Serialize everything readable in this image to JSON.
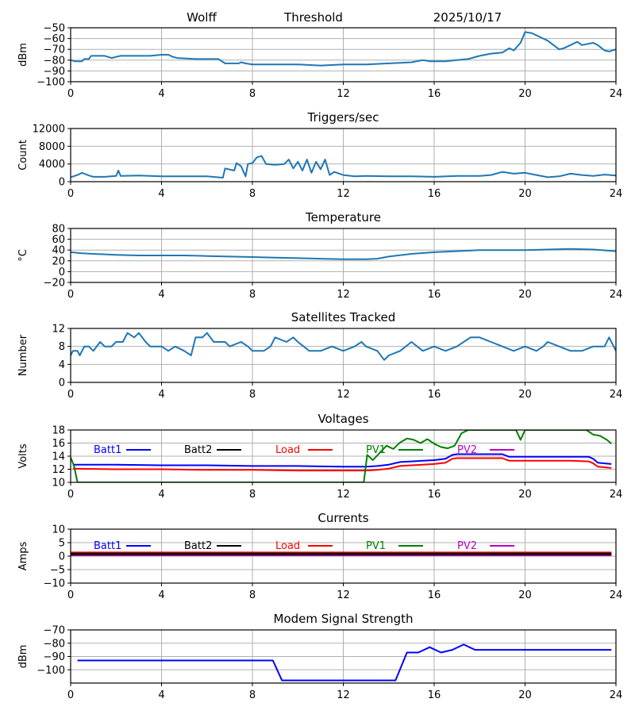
{
  "header": {
    "site": "Wolff",
    "mode": "Threshold",
    "date": "2025/10/17"
  },
  "chart_data": [
    {
      "type": "line",
      "title": "",
      "ylabel": "dBm",
      "ylim": [
        -100,
        -50
      ],
      "yticks": [
        "−50",
        "−60",
        "−70",
        "−80",
        "−90",
        "−100"
      ],
      "ytick_values": [
        -50,
        -60,
        -70,
        -80,
        -90,
        -100
      ],
      "xlim": [
        0,
        24
      ],
      "xticks": [
        "0",
        "4",
        "8",
        "12",
        "16",
        "20",
        "24"
      ],
      "grid": true,
      "series": [
        {
          "name": "threshold",
          "color": "#1f77b4",
          "x": [
            0,
            0.2,
            0.5,
            0.6,
            0.8,
            0.9,
            1.5,
            1.8,
            2,
            2.2,
            3,
            3.5,
            4,
            4.3,
            4.5,
            4.7,
            5.5,
            6,
            6.5,
            6.8,
            7.2,
            7.4,
            7.5,
            7.7,
            8,
            9,
            10,
            11,
            12,
            12.5,
            13,
            14,
            15,
            15.5,
            15.8,
            16.5,
            17,
            17.5,
            18,
            18.5,
            19,
            19.3,
            19.5,
            19.8,
            20,
            20.3,
            20.5,
            20.8,
            21,
            21.5,
            21.7,
            22,
            22.3,
            22.5,
            23,
            23.2,
            23.5,
            23.7,
            24
          ],
          "y": [
            -80,
            -81,
            -81,
            -79,
            -79,
            -76,
            -76,
            -78,
            -77,
            -76,
            -76,
            -76,
            -75,
            -75,
            -77,
            -78,
            -79,
            -79,
            -79,
            -83,
            -83,
            -83,
            -82,
            -83,
            -84,
            -84,
            -84,
            -85,
            -84,
            -84,
            -84,
            -83,
            -82,
            -80,
            -81,
            -81,
            -80,
            -79,
            -76,
            -74,
            -73,
            -69,
            -71,
            -64,
            -54,
            -55,
            -57,
            -60,
            -62,
            -70,
            -69,
            -66,
            -63,
            -66,
            -64,
            -66,
            -71,
            -72,
            -70
          ]
        }
      ]
    },
    {
      "type": "line",
      "title": "Triggers/sec",
      "ylabel": "Count",
      "ylim": [
        0,
        12000
      ],
      "yticks": [
        "12000",
        "8000",
        "4000",
        "0"
      ],
      "ytick_values": [
        12000,
        8000,
        4000,
        0
      ],
      "xlim": [
        0,
        24
      ],
      "xticks": [
        "0",
        "4",
        "8",
        "12",
        "16",
        "20",
        "24"
      ],
      "grid": true,
      "series": [
        {
          "name": "triggers",
          "color": "#1f77b4",
          "x": [
            0,
            0.3,
            0.5,
            0.8,
            1,
            1.5,
            2,
            2.1,
            2.2,
            3,
            4,
            5,
            6,
            6.7,
            6.8,
            7.2,
            7.3,
            7.5,
            7.7,
            7.8,
            8,
            8.2,
            8.4,
            8.6,
            9,
            9.4,
            9.6,
            9.8,
            10,
            10.2,
            10.4,
            10.6,
            10.8,
            11,
            11.2,
            11.4,
            11.6,
            12,
            12.5,
            13,
            14,
            15,
            16,
            17,
            18,
            18.5,
            19,
            19.5,
            20,
            20.5,
            21,
            21.5,
            22,
            22.5,
            23,
            23.5,
            24
          ],
          "y": [
            1000,
            1500,
            2000,
            1400,
            1100,
            1100,
            1300,
            2500,
            1300,
            1400,
            1200,
            1200,
            1200,
            900,
            3000,
            2500,
            4200,
            3500,
            1200,
            4000,
            4200,
            5500,
            5800,
            4000,
            3800,
            4000,
            5000,
            3000,
            4500,
            2500,
            5000,
            2000,
            4500,
            2800,
            5000,
            1500,
            2200,
            1500,
            1200,
            1300,
            1200,
            1200,
            1100,
            1300,
            1300,
            1500,
            2200,
            1800,
            2000,
            1500,
            1000,
            1200,
            1800,
            1500,
            1300,
            1600,
            1400
          ]
        }
      ]
    },
    {
      "type": "line",
      "title": "Temperature",
      "ylabel": "°C",
      "ylim": [
        -20,
        80
      ],
      "yticks": [
        "80",
        "60",
        "40",
        "20",
        "0",
        "−20"
      ],
      "ytick_values": [
        80,
        60,
        40,
        20,
        0,
        -20
      ],
      "xlim": [
        0,
        24
      ],
      "xticks": [
        "0",
        "4",
        "8",
        "12",
        "16",
        "20",
        "24"
      ],
      "grid": true,
      "series": [
        {
          "name": "temperature",
          "color": "#1f77b4",
          "x": [
            0,
            0.5,
            1,
            2,
            3,
            4,
            5,
            6,
            7,
            8,
            9,
            10,
            11,
            12,
            13,
            13.5,
            14,
            15,
            16,
            17,
            18,
            19,
            20,
            21,
            22,
            23,
            24
          ],
          "y": [
            36,
            34,
            33,
            31,
            30,
            30,
            30,
            29,
            28,
            27,
            26,
            25,
            24,
            23,
            23,
            24,
            28,
            33,
            36,
            38,
            40,
            40,
            40,
            41,
            42,
            41,
            38
          ]
        }
      ]
    },
    {
      "type": "line",
      "title": "Satellites Tracked",
      "ylabel": "Number",
      "ylim": [
        0,
        12
      ],
      "yticks": [
        "12",
        "8",
        "4",
        "0"
      ],
      "ytick_values": [
        12,
        8,
        4,
        0
      ],
      "xlim": [
        0,
        24
      ],
      "xticks": [
        "0",
        "4",
        "8",
        "12",
        "16",
        "20",
        "24"
      ],
      "grid": true,
      "series": [
        {
          "name": "satellites",
          "color": "#1f77b4",
          "x": [
            0,
            0.1,
            0.3,
            0.4,
            0.6,
            0.8,
            1,
            1.3,
            1.5,
            1.8,
            2,
            2.3,
            2.5,
            2.8,
            3,
            3.3,
            3.5,
            4,
            4.3,
            4.6,
            5,
            5.3,
            5.5,
            5.8,
            6,
            6.3,
            6.8,
            7,
            7.5,
            7.8,
            8,
            8.5,
            8.8,
            9,
            9.5,
            9.8,
            10,
            10.5,
            11,
            11.5,
            12,
            12.5,
            12.8,
            13,
            13.5,
            13.8,
            14,
            14.5,
            15,
            15.5,
            16,
            16.5,
            17,
            17.3,
            17.6,
            18,
            18.5,
            19,
            19.5,
            20,
            20.5,
            20.8,
            21,
            21.5,
            22,
            22.5,
            23,
            23.5,
            23.7,
            24
          ],
          "y": [
            6,
            7,
            7,
            6,
            8,
            8,
            7,
            9,
            8,
            8,
            9,
            9,
            11,
            10,
            11,
            9,
            8,
            8,
            7,
            8,
            7,
            6,
            10,
            10,
            11,
            9,
            9,
            8,
            9,
            8,
            7,
            7,
            8,
            10,
            9,
            10,
            9,
            7,
            7,
            8,
            7,
            8,
            9,
            8,
            7,
            5,
            6,
            7,
            9,
            7,
            8,
            7,
            8,
            9,
            10,
            10,
            9,
            8,
            7,
            8,
            7,
            8,
            9,
            8,
            7,
            7,
            8,
            8,
            10,
            7
          ]
        }
      ]
    },
    {
      "type": "line",
      "title": "Voltages",
      "ylabel": "Volts",
      "ylim": [
        10,
        18
      ],
      "yticks": [
        "18",
        "16",
        "14",
        "12",
        "10"
      ],
      "ytick_values": [
        18,
        16,
        14,
        12,
        10
      ],
      "xlim": [
        0,
        24
      ],
      "xticks": [
        "0",
        "4",
        "8",
        "12",
        "16",
        "20",
        "24"
      ],
      "grid": true,
      "legend": [
        {
          "name": "Batt1",
          "color": "#0000ff"
        },
        {
          "name": "Batt2",
          "color": "#000000"
        },
        {
          "name": "Load",
          "color": "#ff0000"
        },
        {
          "name": "PV1",
          "color": "#008000"
        },
        {
          "name": "PV2",
          "color": "#bf00bf"
        }
      ],
      "series": [
        {
          "name": "Batt1",
          "color": "#0000ff",
          "x": [
            0.1,
            2,
            4,
            6,
            8,
            10,
            12,
            13,
            13.5,
            14,
            14.5,
            15,
            15.5,
            16,
            16.5,
            16.8,
            17,
            18,
            19,
            19.3,
            20,
            21,
            22,
            22.8,
            23,
            23.2,
            23.8
          ],
          "y": [
            12.7,
            12.7,
            12.6,
            12.6,
            12.5,
            12.5,
            12.4,
            12.4,
            12.5,
            12.7,
            13.1,
            13.2,
            13.3,
            13.4,
            13.6,
            14.2,
            14.3,
            14.3,
            14.3,
            13.9,
            13.9,
            13.9,
            13.9,
            13.9,
            13.6,
            13.0,
            12.8
          ]
        },
        {
          "name": "Load",
          "color": "#ff0000",
          "x": [
            0.1,
            2,
            4,
            6,
            8,
            10,
            12,
            13,
            13.5,
            14,
            14.5,
            15,
            15.5,
            16,
            16.5,
            16.8,
            17,
            18,
            19,
            19.3,
            20,
            21,
            22,
            22.8,
            23,
            23.2,
            23.8
          ],
          "y": [
            12.1,
            12.0,
            12.0,
            11.9,
            11.9,
            11.8,
            11.8,
            11.8,
            11.9,
            12.1,
            12.5,
            12.6,
            12.7,
            12.8,
            13.0,
            13.6,
            13.7,
            13.7,
            13.7,
            13.3,
            13.3,
            13.3,
            13.3,
            13.2,
            12.9,
            12.4,
            12.2
          ]
        },
        {
          "name": "PV1",
          "color": "#008000",
          "x": [
            0,
            0.15,
            0.3,
            12.9,
            13.05,
            13.3,
            13.6,
            13.9,
            14.2,
            14.5,
            14.8,
            15.1,
            15.4,
            15.7,
            16,
            16.3,
            16.6,
            16.9,
            17.2,
            17.5,
            19.6,
            19.8,
            20,
            22.7,
            23,
            23.3,
            23.6,
            23.8
          ],
          "y": [
            13.8,
            12.5,
            10,
            10,
            14.2,
            13.4,
            14.5,
            15.6,
            15.1,
            16.1,
            16.7,
            16.5,
            16.0,
            16.6,
            15.9,
            15.4,
            15.2,
            15.6,
            17.5,
            18,
            18,
            16.5,
            18,
            18,
            17.3,
            17.1,
            16.5,
            15.9
          ]
        }
      ]
    },
    {
      "type": "line",
      "title": "Currents",
      "ylabel": "Amps",
      "ylim": [
        -10,
        10
      ],
      "yticks": [
        "10",
        "5",
        "0",
        "−5",
        "−10"
      ],
      "ytick_values": [
        10,
        5,
        0,
        -5,
        -10
      ],
      "xlim": [
        0,
        24
      ],
      "xticks": [
        "0",
        "4",
        "8",
        "12",
        "16",
        "20",
        "24"
      ],
      "grid": true,
      "legend": [
        {
          "name": "Batt1",
          "color": "#0000ff"
        },
        {
          "name": "Batt2",
          "color": "#000000"
        },
        {
          "name": "Load",
          "color": "#ff0000"
        },
        {
          "name": "PV1",
          "color": "#008000"
        },
        {
          "name": "PV2",
          "color": "#bf00bf"
        }
      ],
      "series": [
        {
          "name": "PV2",
          "color": "#bf00bf",
          "x": [
            0,
            23.8
          ],
          "y": [
            0.4,
            0.4
          ]
        },
        {
          "name": "Load",
          "color": "#ff0000",
          "x": [
            0,
            23.8
          ],
          "y": [
            1.2,
            1.2
          ]
        },
        {
          "name": "Batt2",
          "color": "#000000",
          "x": [
            0,
            23.8
          ],
          "y": [
            0.8,
            0.8
          ]
        }
      ]
    },
    {
      "type": "line",
      "title": "Modem Signal Strength",
      "ylabel": "dBm",
      "ylim": [
        -110,
        -70
      ],
      "yticks": [
        "−70",
        "−80",
        "−90",
        "−100"
      ],
      "ytick_values": [
        -70,
        -80,
        -90,
        -100
      ],
      "xlim": [
        0,
        24
      ],
      "xticks": [
        "0",
        "4",
        "8",
        "12",
        "16",
        "20",
        "24"
      ],
      "grid": true,
      "series": [
        {
          "name": "modem",
          "color": "#0000ff",
          "x": [
            0.3,
            8.9,
            9.3,
            14.3,
            14.8,
            15.3,
            15.8,
            16.3,
            16.8,
            17.3,
            17.8,
            23.8
          ],
          "y": [
            -93,
            -93,
            -108,
            -108,
            -87,
            -87,
            -83,
            -87,
            -85,
            -81,
            -85,
            -85
          ]
        }
      ]
    }
  ]
}
